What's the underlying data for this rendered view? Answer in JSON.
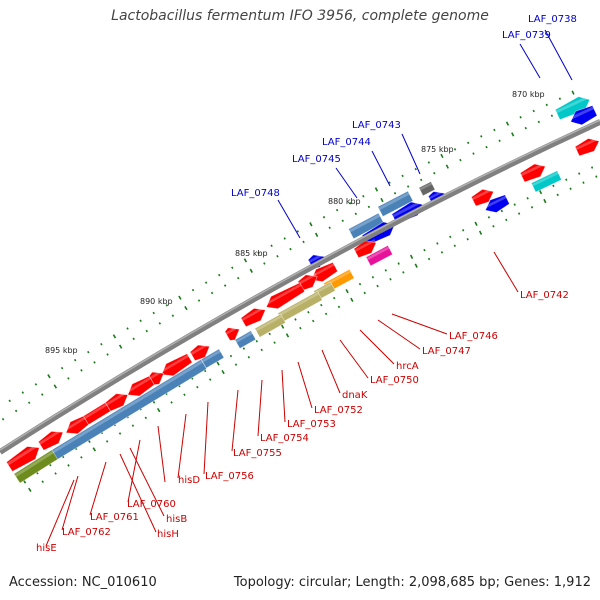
{
  "title": "Lactobacillus fermentum IFO 3956, complete genome",
  "accession": "Accession: NC_010610",
  "stats": "Topology: circular; Length: 2,098,685 bp; Genes: 1,912",
  "colors": {
    "backbone": "#888888",
    "red": "#ff0000",
    "steelblue": "#4a82b8",
    "blue": "#0000ee",
    "olive": "#6e8c1e",
    "khaki": "#b8b066",
    "orange": "#ff9900",
    "cyan": "#00c8c8",
    "magenta": "#e8129a",
    "gray": "#666666",
    "tick": "#1a7a1a",
    "label_blue": "#0000cc",
    "label_red": "#cc0000"
  },
  "kbp_labels": [
    "870 kbp",
    "875 kbp",
    "880 kbp",
    "885 kbp",
    "890 kbp",
    "895 kbp"
  ],
  "gene_labels_top": [
    "LAF_0738",
    "LAF_0739",
    "LAF_0743",
    "LAF_0744",
    "LAF_0745",
    "LAF_0748"
  ],
  "gene_labels_bottom": [
    "LAF_0742",
    "LAF_0746",
    "LAF_0747",
    "hrcA",
    "LAF_0750",
    "dnaK",
    "LAF_0752",
    "LAF_0753",
    "LAF_0754",
    "LAF_0755",
    "LAF_0756",
    "hisD",
    "LAF_0760",
    "hisB",
    "hisH",
    "LAF_0761",
    "LAF_0762",
    "hisE"
  ]
}
